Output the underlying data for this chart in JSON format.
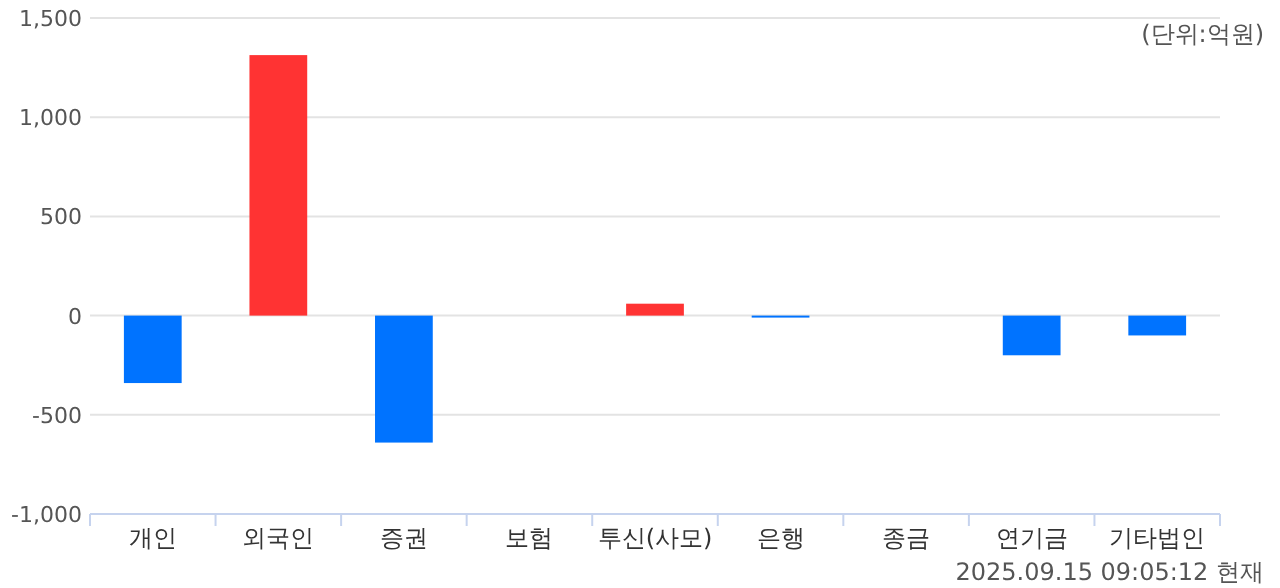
{
  "chart_data": {
    "type": "bar",
    "categories": [
      "개인",
      "외국인",
      "증권",
      "보험",
      "투신(사모)",
      "은행",
      "종금",
      "연기금",
      "기타법인"
    ],
    "values": [
      -340,
      1313,
      -640,
      0,
      60,
      -10,
      0,
      -200,
      -100
    ],
    "colors": [
      "#0073ff",
      "#ff3333",
      "#0073ff",
      "#0073ff",
      "#ff3333",
      "#0073ff",
      "#0073ff",
      "#0073ff",
      "#0073ff"
    ],
    "ylim": [
      -1000,
      1500
    ],
    "yticks": [
      {
        "value": -1000,
        "label": "-1,000"
      },
      {
        "value": -500,
        "label": "-500"
      },
      0,
      500,
      {
        "value": 1000,
        "label": "1,000"
      },
      {
        "value": 1500,
        "label": "1,500"
      }
    ],
    "grid": "y",
    "annotations": [
      "(단위:억원)",
      "2025.09.15 09:05:12 현재"
    ]
  }
}
